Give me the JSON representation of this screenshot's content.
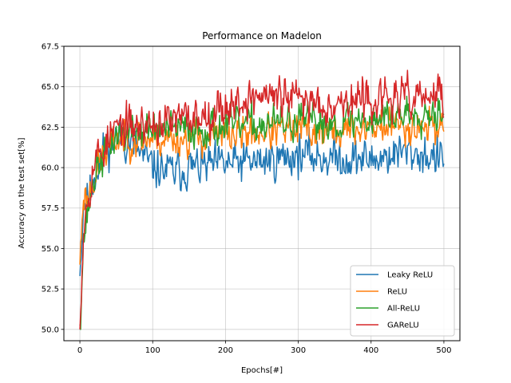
{
  "chart_data": {
    "type": "line",
    "title": "Performance on Madelon",
    "xlabel": "Epochs[#]",
    "ylabel": "Accuracy on the test set[%]",
    "xlim": [
      -22,
      522
    ],
    "ylim": [
      49.3,
      67.5
    ],
    "xticks": [
      0,
      100,
      200,
      300,
      400,
      500
    ],
    "yticks": [
      50.0,
      52.5,
      55.0,
      57.5,
      60.0,
      62.5,
      65.0,
      67.5
    ],
    "grid": true,
    "legend_position": "bottom-right",
    "x_range": [
      0,
      500
    ],
    "series": [
      {
        "name": "Leaky ReLU",
        "color": "#1f77b4",
        "keypoints": [
          [
            0,
            53.3
          ],
          [
            5,
            57.8
          ],
          [
            10,
            58.0
          ],
          [
            20,
            59.5
          ],
          [
            30,
            60.8
          ],
          [
            50,
            62.0
          ],
          [
            70,
            61.5
          ],
          [
            100,
            60.0
          ],
          [
            130,
            59.7
          ],
          [
            150,
            60.0
          ],
          [
            200,
            60.2
          ],
          [
            250,
            60.4
          ],
          [
            300,
            60.8
          ],
          [
            350,
            60.6
          ],
          [
            400,
            60.5
          ],
          [
            450,
            61.0
          ],
          [
            500,
            60.5
          ]
        ],
        "amplitude": 0.9,
        "seed": 11
      },
      {
        "name": "ReLU",
        "color": "#ff7f0e",
        "keypoints": [
          [
            0,
            54.0
          ],
          [
            5,
            58.5
          ],
          [
            10,
            58.0
          ],
          [
            20,
            59.5
          ],
          [
            30,
            60.5
          ],
          [
            50,
            61.8
          ],
          [
            70,
            61.8
          ],
          [
            100,
            61.8
          ],
          [
            150,
            61.8
          ],
          [
            200,
            62.0
          ],
          [
            250,
            62.2
          ],
          [
            300,
            62.3
          ],
          [
            350,
            62.2
          ],
          [
            400,
            62.5
          ],
          [
            450,
            62.6
          ],
          [
            500,
            62.6
          ]
        ],
        "amplitude": 0.8,
        "seed": 23
      },
      {
        "name": "All-ReLU",
        "color": "#2ca02c",
        "keypoints": [
          [
            0,
            50.3
          ],
          [
            5,
            55.5
          ],
          [
            10,
            57.0
          ],
          [
            20,
            59.5
          ],
          [
            30,
            60.5
          ],
          [
            50,
            62.0
          ],
          [
            70,
            62.2
          ],
          [
            100,
            62.3
          ],
          [
            150,
            62.4
          ],
          [
            200,
            62.5
          ],
          [
            250,
            62.7
          ],
          [
            300,
            62.8
          ],
          [
            350,
            62.8
          ],
          [
            400,
            63.0
          ],
          [
            450,
            63.4
          ],
          [
            500,
            63.6
          ]
        ],
        "amplitude": 0.8,
        "seed": 37
      },
      {
        "name": "GAReLU",
        "color": "#d62728",
        "keypoints": [
          [
            0,
            50.0
          ],
          [
            5,
            56.5
          ],
          [
            10,
            58.0
          ],
          [
            20,
            60.5
          ],
          [
            30,
            61.0
          ],
          [
            50,
            62.5
          ],
          [
            70,
            62.5
          ],
          [
            100,
            62.7
          ],
          [
            150,
            63.0
          ],
          [
            200,
            63.8
          ],
          [
            250,
            64.5
          ],
          [
            300,
            64.2
          ],
          [
            350,
            64.0
          ],
          [
            400,
            64.2
          ],
          [
            450,
            64.3
          ],
          [
            500,
            64.4
          ]
        ],
        "amplitude": 0.9,
        "seed": 53
      }
    ]
  }
}
